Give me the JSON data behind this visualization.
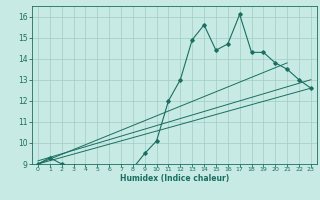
{
  "xlabel": "Humidex (Indice chaleur)",
  "bg_color": "#c8eae4",
  "grid_color": "#a0ccc4",
  "line_color": "#1a6e62",
  "xlim": [
    -0.5,
    23.5
  ],
  "ylim": [
    9,
    16.5
  ],
  "xticks": [
    0,
    1,
    2,
    3,
    4,
    5,
    6,
    7,
    8,
    9,
    10,
    11,
    12,
    13,
    14,
    15,
    16,
    17,
    18,
    19,
    20,
    21,
    22,
    23
  ],
  "yticks": [
    9,
    10,
    11,
    12,
    13,
    14,
    15,
    16
  ],
  "series1_x": [
    0,
    1,
    2,
    3,
    4,
    5,
    6,
    7,
    8,
    9,
    10,
    11,
    12,
    13,
    14,
    15,
    16,
    17,
    18,
    19,
    20,
    21,
    22,
    23
  ],
  "series1_y": [
    9.0,
    9.3,
    9.0,
    8.9,
    8.8,
    8.8,
    8.8,
    8.9,
    8.8,
    9.5,
    10.1,
    12.0,
    13.0,
    14.9,
    15.6,
    14.4,
    14.7,
    16.1,
    14.3,
    14.3,
    13.8,
    13.5,
    13.0,
    12.6
  ],
  "line2_x": [
    0,
    23
  ],
  "line2_y": [
    9.0,
    12.6
  ],
  "line3_x": [
    0,
    21
  ],
  "line3_y": [
    9.0,
    13.8
  ],
  "line4_x": [
    0,
    23
  ],
  "line4_y": [
    9.15,
    13.0
  ]
}
